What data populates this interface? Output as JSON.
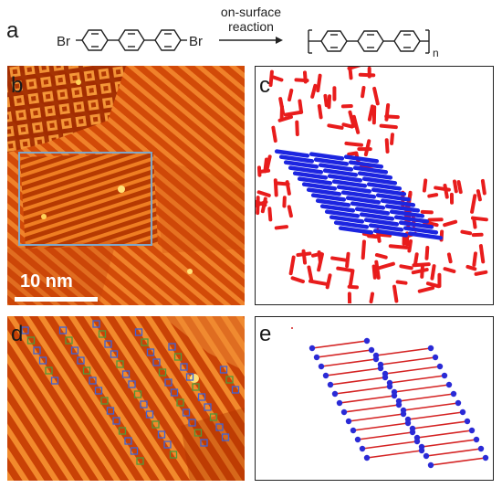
{
  "figure": {
    "panels": {
      "a": {
        "letter": "a",
        "reactant_halogen_left": "Br",
        "reactant_halogen_right": "Br",
        "arrow_label_line1": "on-surface",
        "arrow_label_line2": "reaction",
        "polymer_subscript": "n"
      },
      "b": {
        "letter": "b",
        "scale_bar_label": "10 nm",
        "image_type": "STM topograph"
      },
      "c": {
        "letter": "c"
      },
      "d": {
        "letter": "d",
        "image_type": "STM topograph"
      },
      "e": {
        "letter": "e"
      }
    },
    "colors": {
      "stm_dark": "#a02800",
      "stm_mid": "#d8500a",
      "stm_light": "#f08a2a",
      "stm_bright": "#ffe27a",
      "roi_box": "#7fa7c9",
      "model_red": "#e81c1c",
      "model_blue": "#1c25e0",
      "lattice_bond": "#d42323",
      "lattice_atom": "#2a2ad6",
      "marker_blue": "#3d63d8",
      "marker_green": "#4f9a3b"
    }
  }
}
